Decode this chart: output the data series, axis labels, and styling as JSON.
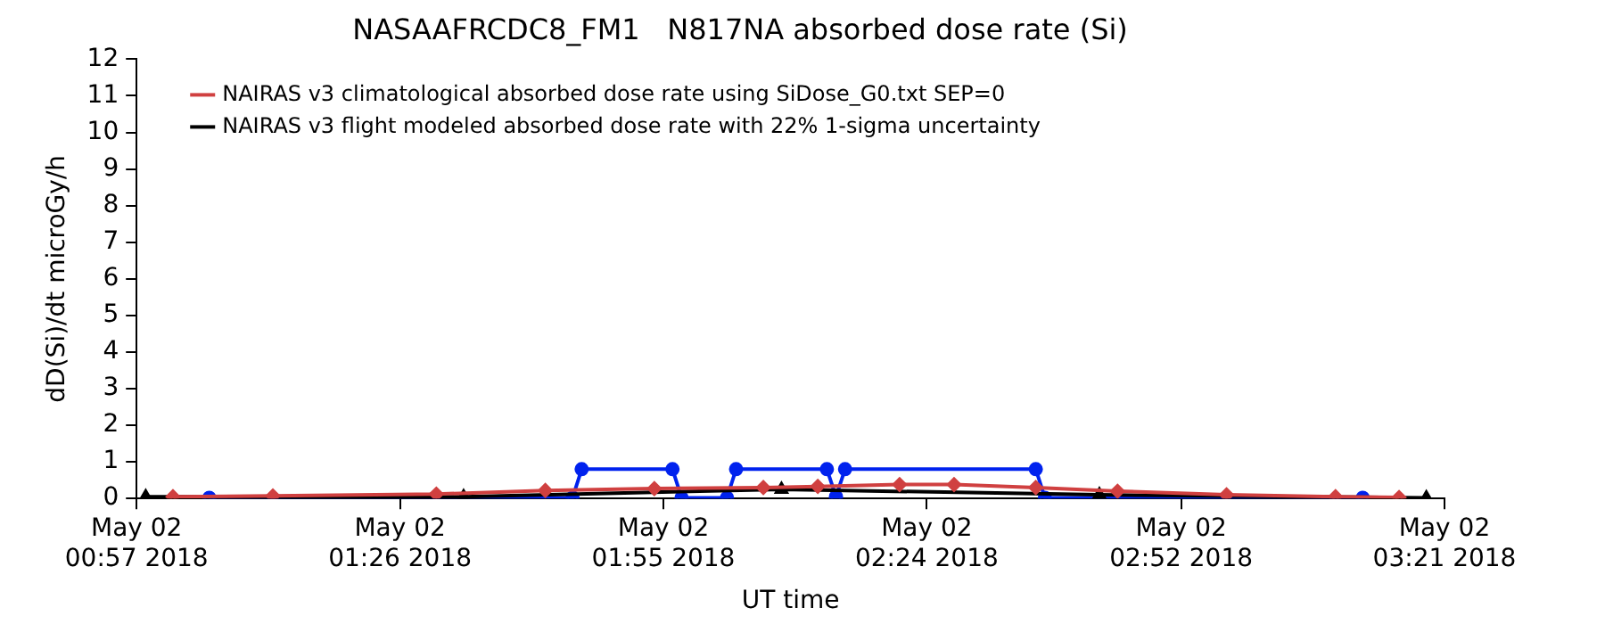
{
  "chart_data": {
    "type": "line",
    "title": "NASAAFRCDC8_FM1   N817NA absorbed dose rate (Si)",
    "xlabel": "UT time",
    "ylabel": "dD(Si)/dt microGy/h",
    "xlim": [
      "2018-05-02T00:57",
      "2018-05-02T03:21"
    ],
    "xticks": [
      {
        "value": "2018-05-02T00:57",
        "label": "May 02\n00:57 2018"
      },
      {
        "value": "2018-05-02T01:26",
        "label": "May 02\n01:26 2018"
      },
      {
        "value": "2018-05-02T01:55",
        "label": "May 02\n01:55 2018"
      },
      {
        "value": "2018-05-02T02:24",
        "label": "May 02\n02:24 2018"
      },
      {
        "value": "2018-05-02T02:52",
        "label": "May 02\n02:52 2018"
      },
      {
        "value": "2018-05-02T03:21",
        "label": "May 02\n03:21 2018"
      }
    ],
    "ylim": [
      0,
      12
    ],
    "yticks": [
      0,
      1,
      2,
      3,
      4,
      5,
      6,
      7,
      8,
      9,
      10,
      11,
      12
    ],
    "grid": false,
    "legend": "top left",
    "series": [
      {
        "name": "NAIRAS v3 climatological absorbed dose rate using SiDose_G0.txt SEP=0",
        "color": "#d04040",
        "marker": "diamond",
        "x": [
          "2018-05-02T01:01",
          "2018-05-02T01:12",
          "2018-05-02T01:30",
          "2018-05-02T01:42",
          "2018-05-02T01:54",
          "2018-05-02T02:06",
          "2018-05-02T02:12",
          "2018-05-02T02:21",
          "2018-05-02T02:27",
          "2018-05-02T02:36",
          "2018-05-02T02:45",
          "2018-05-02T02:57",
          "2018-05-02T03:09",
          "2018-05-02T03:16"
        ],
        "values": [
          0.05,
          0.07,
          0.12,
          0.22,
          0.27,
          0.3,
          0.33,
          0.38,
          0.38,
          0.3,
          0.2,
          0.1,
          0.05,
          0.03
        ]
      },
      {
        "name": "NAIRAS v3 flight modeled absorbed dose rate with 22% 1-sigma uncertainty",
        "color": "#000000",
        "marker": "triangle",
        "x": [
          "2018-05-02T00:58",
          "2018-05-02T01:33",
          "2018-05-02T02:08",
          "2018-05-02T02:43",
          "2018-05-02T03:19"
        ],
        "values": [
          0.05,
          0.05,
          0.25,
          0.1,
          0.02
        ]
      },
      {
        "color": "#0022ee",
        "marker": "circle",
        "x": [
          "2018-05-02T01:05",
          "2018-05-02T01:45",
          "2018-05-02T01:46",
          "2018-05-02T01:56",
          "2018-05-02T01:57",
          "2018-05-02T02:02",
          "2018-05-02T02:03",
          "2018-05-02T02:13",
          "2018-05-02T02:14",
          "2018-05-02T02:15",
          "2018-05-02T02:36",
          "2018-05-02T02:37",
          "2018-05-02T03:12"
        ],
        "values": [
          0.02,
          0.02,
          0.8,
          0.8,
          0.02,
          0.02,
          0.8,
          0.8,
          0.05,
          0.8,
          0.8,
          0.02,
          0.02
        ]
      }
    ]
  }
}
